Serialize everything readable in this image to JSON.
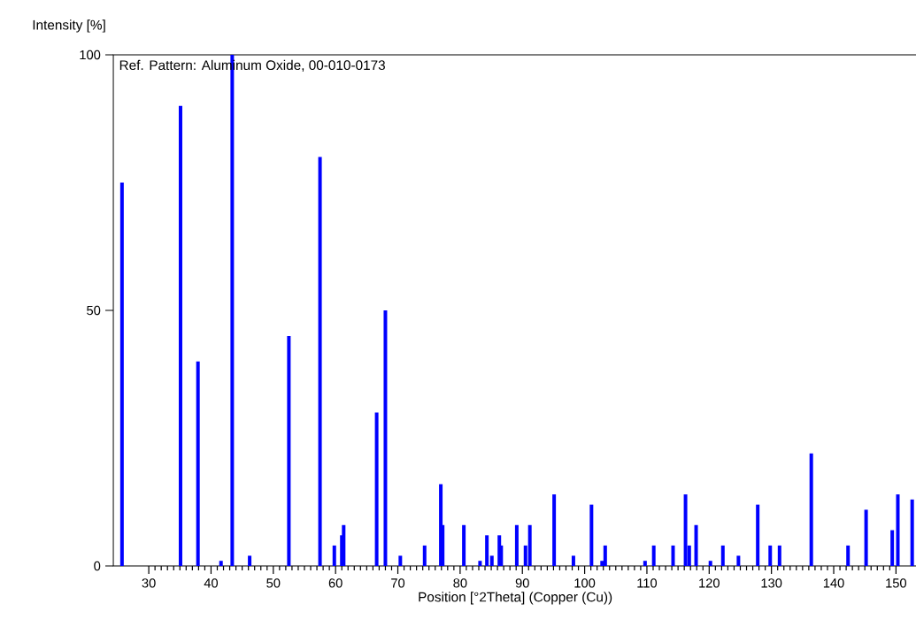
{
  "chart_data": {
    "type": "bar",
    "xlabel": "Position [°2Theta] (Copper (Cu))",
    "ylabel": "Intensity [%]",
    "annotations": [
      "Ref. Pattern: Aluminum Oxide, 00-010-0173"
    ],
    "x": [
      25.7,
      35.1,
      37.9,
      41.6,
      43.4,
      46.2,
      52.5,
      57.5,
      59.8,
      61.0,
      61.3,
      66.6,
      68.0,
      70.4,
      74.3,
      76.9,
      77.2,
      80.6,
      83.2,
      84.3,
      85.1,
      86.3,
      86.6,
      89.1,
      90.5,
      91.2,
      95.1,
      98.2,
      101.1,
      102.8,
      103.3,
      109.7,
      111.1,
      114.2,
      116.2,
      116.8,
      117.9,
      120.2,
      122.2,
      124.7,
      127.8,
      129.8,
      131.3,
      136.4,
      142.3,
      145.2,
      149.4,
      150.3,
      152.6
    ],
    "values": [
      75,
      90,
      40,
      1,
      100,
      2,
      45,
      80,
      4,
      6,
      8,
      30,
      50,
      2,
      4,
      16,
      8,
      8,
      1,
      6,
      2,
      6,
      4,
      8,
      4,
      8,
      14,
      2,
      12,
      1,
      4,
      1,
      4,
      4,
      14,
      4,
      8,
      1,
      4,
      2,
      12,
      4,
      4,
      22,
      4,
      11,
      7,
      14,
      13
    ],
    "color": "#0000ff",
    "xlim": [
      24.3,
      153.4
    ],
    "ylim": [
      0,
      100
    ],
    "xticks": [
      30,
      40,
      50,
      60,
      70,
      80,
      90,
      100,
      110,
      120,
      130,
      140,
      150
    ],
    "yticks": [
      0,
      50,
      100
    ]
  }
}
